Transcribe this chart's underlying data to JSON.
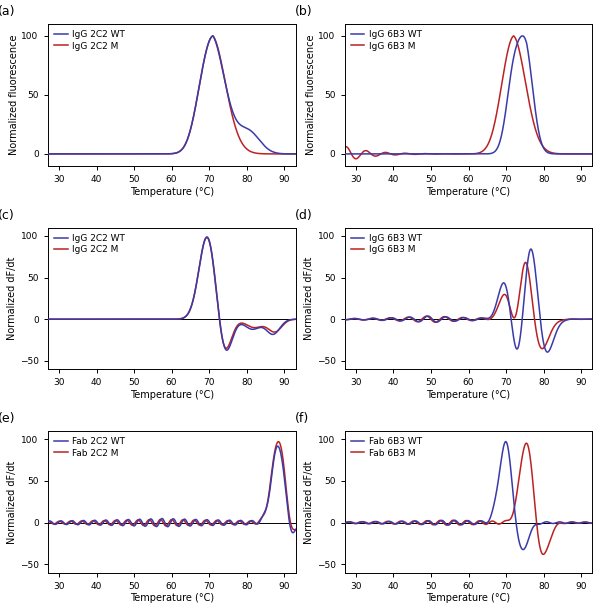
{
  "colors": {
    "wt": "#3a3aaa",
    "m": "#bb2222"
  },
  "xlim": [
    27,
    93
  ],
  "xticks": [
    30,
    40,
    50,
    60,
    70,
    80,
    90
  ],
  "linewidth": 1.1,
  "legends": {
    "a": [
      "IgG 2C2 WT",
      "IgG 2C2 M"
    ],
    "b": [
      "IgG 6B3 WT",
      "IgG 6B3 M"
    ],
    "c": [
      "IgG 2C2 WT",
      "IgG 2C2 M"
    ],
    "d": [
      "IgG 6B3 WT",
      "IgG 6B3 M"
    ],
    "e": [
      "Fab 2C2 WT",
      "Fab 2C2 M"
    ],
    "f": [
      "Fab 6B3 WT",
      "Fab 6B3 M"
    ]
  }
}
